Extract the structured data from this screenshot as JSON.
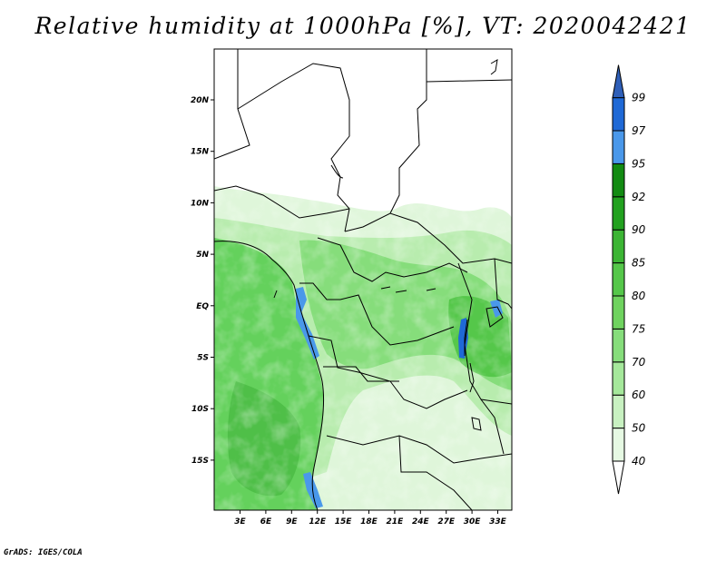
{
  "title": "Relative humidity at 1000hPa [%], VT: 2020042421",
  "footer": "GrADS: IGES/COLA",
  "map": {
    "lat_ticks": [
      "20N",
      "15N",
      "10N",
      "5N",
      "EQ",
      "5S",
      "10S",
      "15S"
    ],
    "lon_ticks": [
      "3E",
      "6E",
      "9E",
      "12E",
      "15E",
      "18E",
      "21E",
      "24E",
      "27E",
      "30E",
      "33E"
    ]
  },
  "colorbar": {
    "levels": [
      "40",
      "50",
      "60",
      "70",
      "75",
      "80",
      "85",
      "90",
      "92",
      "95",
      "97",
      "99"
    ],
    "colors": [
      "#ffffff",
      "#e6f9e3",
      "#c8f1c1",
      "#a5e89b",
      "#86dd7b",
      "#6fd35f",
      "#55c74a",
      "#3cb534",
      "#22a11f",
      "#128b12",
      "#4a98ea",
      "#1f69d6",
      "#2f5fb8"
    ]
  },
  "colors": {
    "ocean": "#64d15c",
    "land_dry": "#ffffff",
    "border": "#000000"
  }
}
